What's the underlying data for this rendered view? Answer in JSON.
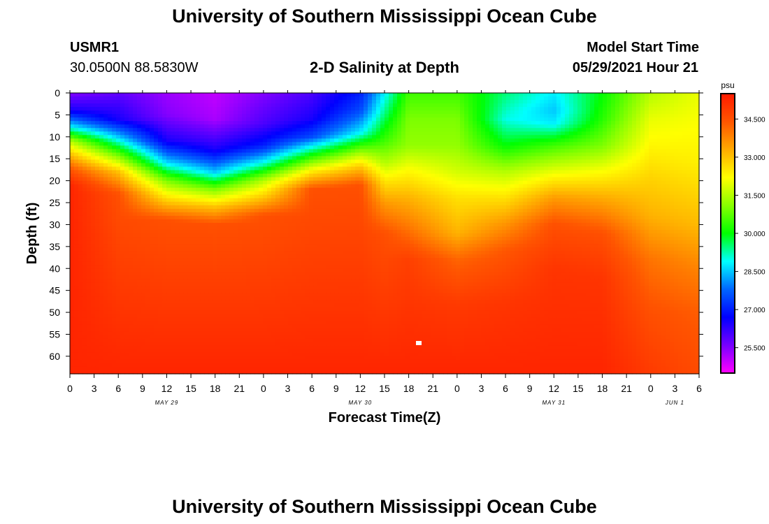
{
  "page": {
    "top_title": "University of Southern Mississippi Ocean Cube",
    "bottom_title": "University of Southern Mississippi Ocean Cube"
  },
  "header": {
    "station_id": "USMR1",
    "coordinates": "30.0500N  88.5830W",
    "chart_title": "2-D Salinity at Depth",
    "model_label": "Model Start Time",
    "model_time": "05/29/2021 Hour 21"
  },
  "colors": {
    "scale": [
      "#ff00ff",
      "#7700ff",
      "#0000ff",
      "#0066ff",
      "#00ffff",
      "#00ff00",
      "#88ff00",
      "#ffff00",
      "#ffaa00",
      "#ff5500",
      "#ff1a00"
    ],
    "marker": "#ffffff"
  },
  "chart_data": {
    "type": "heatmap",
    "title": "2-D Salinity at Depth",
    "xlabel": "Forecast Time(Z)",
    "ylabel": "Depth (ft)",
    "x_range_hours": [
      0,
      78
    ],
    "y_range_ft": [
      0,
      64
    ],
    "x_tick_labels": [
      "0",
      "3",
      "6",
      "9",
      "12",
      "15",
      "18",
      "21",
      "0",
      "3",
      "6",
      "9",
      "12",
      "15",
      "18",
      "21",
      "0",
      "3",
      "6",
      "9",
      "12",
      "15",
      "18",
      "21",
      "0",
      "3",
      "6"
    ],
    "date_labels": [
      {
        "text": "MAY 29",
        "hour": 12
      },
      {
        "text": "MAY 30",
        "hour": 36
      },
      {
        "text": "MAY 31",
        "hour": 60
      },
      {
        "text": "JUN 1",
        "hour": 75
      }
    ],
    "y_ticks": [
      0,
      5,
      10,
      15,
      20,
      25,
      30,
      35,
      40,
      45,
      50,
      55,
      60
    ],
    "colorbar": {
      "unit": "psu",
      "min": 24.5,
      "max": 35.5,
      "ticks": [
        "25.500",
        "27.000",
        "28.500",
        "30.000",
        "31.500",
        "33.000",
        "34.500"
      ],
      "tick_values": [
        25.5,
        27.0,
        28.5,
        30.0,
        31.5,
        33.0,
        34.5
      ]
    },
    "salinity_profiles": [
      {
        "hour": 0,
        "depth": [
          0,
          4,
          8,
          11,
          14,
          17,
          21,
          64
        ],
        "value": [
          25.5,
          26.5,
          29.0,
          31.5,
          33.0,
          34.3,
          35.3,
          35.3
        ]
      },
      {
        "hour": 6,
        "depth": [
          0,
          6,
          10,
          14,
          18,
          23,
          64
        ],
        "value": [
          25.8,
          26.5,
          28.5,
          30.8,
          33.0,
          34.5,
          35.3
        ]
      },
      {
        "hour": 12,
        "depth": [
          0,
          5,
          11,
          16,
          20,
          25,
          29,
          64
        ],
        "value": [
          25.3,
          25.5,
          26.5,
          28.7,
          31.0,
          33.0,
          34.5,
          35.3
        ]
      },
      {
        "hour": 18,
        "depth": [
          0,
          6,
          13,
          18,
          22,
          26,
          30,
          64
        ],
        "value": [
          25.0,
          25.2,
          26.5,
          28.5,
          31.0,
          33.0,
          34.5,
          35.3
        ]
      },
      {
        "hour": 24,
        "depth": [
          0,
          7,
          12,
          16,
          20,
          24,
          28,
          64
        ],
        "value": [
          25.5,
          26.0,
          27.0,
          29.0,
          31.5,
          33.0,
          34.5,
          35.3
        ]
      },
      {
        "hour": 30,
        "depth": [
          0,
          6,
          10,
          14,
          18,
          22,
          64
        ],
        "value": [
          26.0,
          26.5,
          27.5,
          30.0,
          32.5,
          34.5,
          35.3
        ]
      },
      {
        "hour": 36,
        "depth": [
          0,
          4,
          9,
          14,
          17,
          21,
          64
        ],
        "value": [
          27.0,
          27.5,
          28.8,
          31.5,
          33.0,
          34.5,
          35.3
        ]
      },
      {
        "hour": 39,
        "depth": [
          0,
          5,
          11,
          16,
          20,
          25,
          32,
          64
        ],
        "value": [
          28.8,
          29.5,
          30.5,
          31.5,
          32.5,
          33.5,
          34.5,
          35.3
        ]
      },
      {
        "hour": 42,
        "depth": [
          0,
          6,
          12,
          18,
          24,
          31,
          38,
          64
        ],
        "value": [
          30.5,
          31.0,
          31.2,
          32.3,
          33.2,
          34.0,
          34.8,
          35.3
        ]
      },
      {
        "hour": 48,
        "depth": [
          0,
          6,
          12,
          18,
          24,
          32,
          38,
          48,
          64
        ],
        "value": [
          30.5,
          31.0,
          31.2,
          31.8,
          32.6,
          33.2,
          34.2,
          34.9,
          35.3
        ]
      },
      {
        "hour": 54,
        "depth": [
          0,
          6,
          12,
          18,
          24,
          30,
          36,
          48,
          64
        ],
        "value": [
          29.5,
          29.0,
          30.0,
          31.5,
          32.6,
          33.6,
          34.4,
          35.0,
          35.3
        ]
      },
      {
        "hour": 60,
        "depth": [
          0,
          4,
          7,
          12,
          18,
          24,
          30,
          40,
          64
        ],
        "value": [
          28.8,
          28.5,
          28.8,
          30.5,
          32.0,
          33.5,
          34.5,
          35.0,
          35.3
        ]
      },
      {
        "hour": 66,
        "depth": [
          0,
          6,
          12,
          18,
          24,
          32,
          42,
          64
        ],
        "value": [
          30.0,
          30.3,
          31.0,
          32.2,
          33.3,
          34.5,
          35.0,
          35.3
        ]
      },
      {
        "hour": 72,
        "depth": [
          0,
          6,
          12,
          20,
          28,
          38,
          50,
          64
        ],
        "value": [
          31.5,
          32.0,
          32.3,
          32.8,
          33.2,
          34.0,
          34.5,
          34.9
        ]
      },
      {
        "hour": 78,
        "depth": [
          0,
          8,
          16,
          24,
          30,
          40,
          50,
          64
        ],
        "value": [
          32.0,
          32.2,
          32.4,
          32.8,
          33.1,
          33.8,
          34.3,
          34.6
        ]
      }
    ],
    "marker": {
      "hour": 43.25,
      "depth": 57
    }
  }
}
